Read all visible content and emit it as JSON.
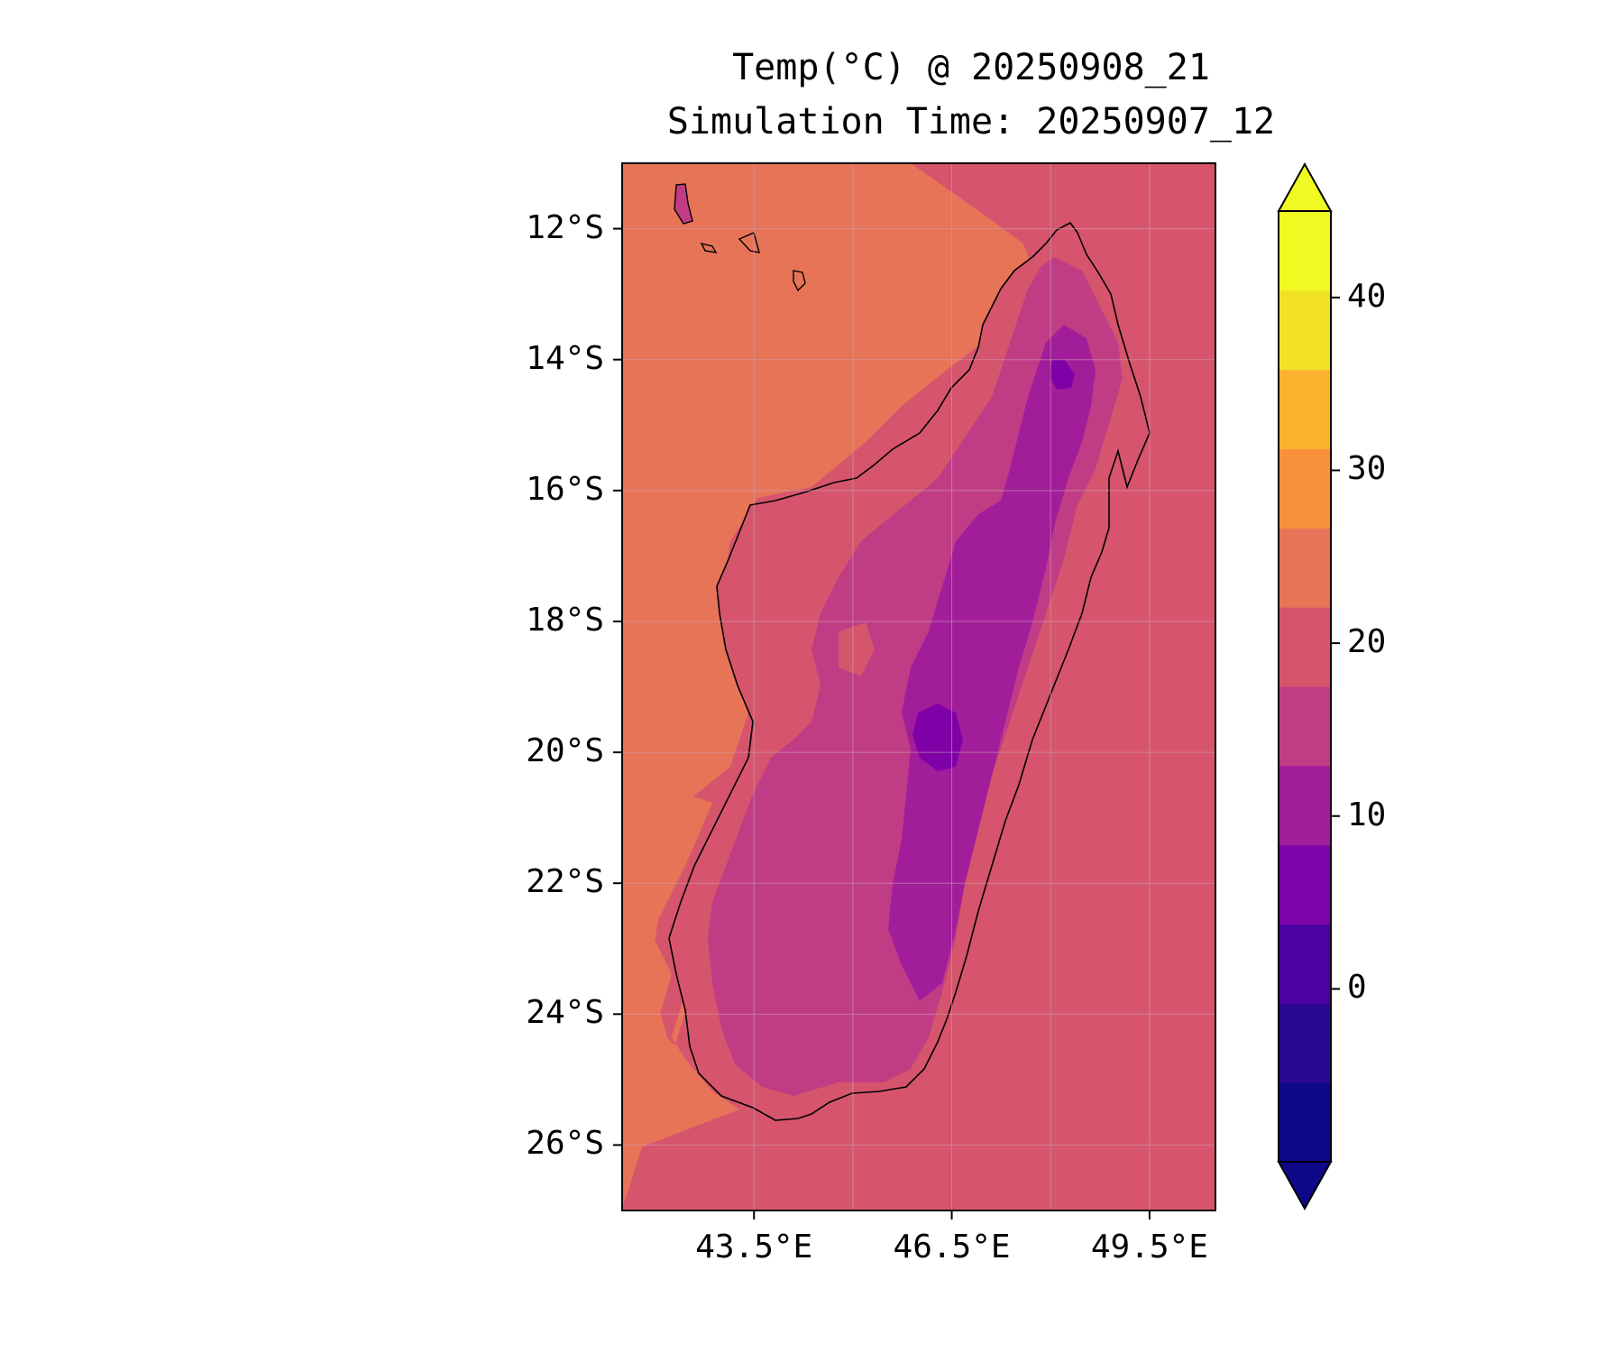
{
  "title": {
    "line1": "Temp(°C) @ 20250908_21",
    "line2": "Simulation Time: 20250907_12"
  },
  "map": {
    "region": "Madagascar",
    "extent": {
      "lon": [
        41.5,
        50.5
      ],
      "lat": [
        -27,
        -11
      ]
    },
    "lat_ticks": [
      {
        "value": -12,
        "label": "12°S"
      },
      {
        "value": -14,
        "label": "14°S"
      },
      {
        "value": -16,
        "label": "16°S"
      },
      {
        "value": -18,
        "label": "18°S"
      },
      {
        "value": -20,
        "label": "20°S"
      },
      {
        "value": -22,
        "label": "22°S"
      },
      {
        "value": -24,
        "label": "24°S"
      },
      {
        "value": -26,
        "label": "26°S"
      }
    ],
    "lon_ticks": [
      {
        "value": 43.5,
        "label": "43.5°E"
      },
      {
        "value": 46.5,
        "label": "46.5°E"
      },
      {
        "value": 49.5,
        "label": "49.5°E"
      }
    ],
    "grid": true,
    "colors": {
      "ocean_west": "#e87458",
      "ocean_east": "#d6556d",
      "land_warm": "#d6556d",
      "land_mid": "#c03d86",
      "land_cool": "#a21d9a",
      "land_cold": "#8000a8",
      "coastline": "#000000"
    }
  },
  "colorbar": {
    "levels": [
      -10,
      -5,
      0,
      5,
      10,
      15,
      20,
      25,
      30,
      35,
      40,
      45
    ],
    "colors": [
      "#0d0887",
      "#2a0893",
      "#4c02a1",
      "#7e03a8",
      "#a21d9a",
      "#c03d86",
      "#d6556d",
      "#e87458",
      "#f7923a",
      "#fdb22f",
      "#f1e227",
      "#f0f921"
    ],
    "tick_values": [
      0,
      10,
      20,
      30,
      40
    ],
    "tick_labels": [
      "0",
      "10",
      "20",
      "30",
      "40"
    ],
    "extend": "both"
  }
}
